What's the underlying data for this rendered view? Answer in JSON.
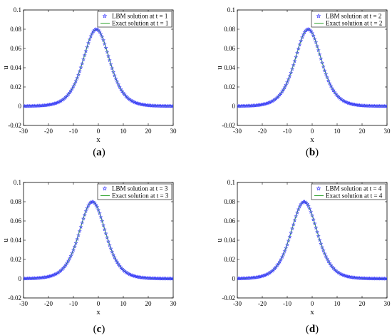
{
  "colors": {
    "lbm_marker": "#3b3bff",
    "exact_line": "#1f9e1f",
    "axis": "#000000"
  },
  "chart_data": [
    {
      "type": "scatter",
      "caption": "a",
      "xlabel": "x",
      "ylabel": "u",
      "xlim": [
        -30,
        30
      ],
      "ylim": [
        -0.02,
        0.1
      ],
      "xticks": [
        "-30",
        "-20",
        "-10",
        "0",
        "10",
        "20",
        "30"
      ],
      "yticks": [
        "-0.02",
        "0",
        "0.02",
        "0.04",
        "0.06",
        "0.08",
        "0.1"
      ],
      "grid": false,
      "legend_position": "top-right",
      "peak": 0.08,
      "center": -0.8,
      "width": 7.07,
      "series": [
        {
          "name": "LBM solution at t = 1",
          "marker": "star"
        },
        {
          "name": "Exact solution at t = 1",
          "marker": "line"
        }
      ]
    },
    {
      "type": "scatter",
      "caption": "b",
      "xlabel": "x",
      "ylabel": "u",
      "xlim": [
        -30,
        30
      ],
      "ylim": [
        -0.02,
        0.1
      ],
      "xticks": [
        "-30",
        "-20",
        "-10",
        "0",
        "10",
        "20",
        "30"
      ],
      "yticks": [
        "-0.02",
        "0",
        "0.02",
        "0.04",
        "0.06",
        "0.08",
        "0.1"
      ],
      "grid": false,
      "legend_position": "top-right",
      "peak": 0.08,
      "center": -1.6,
      "width": 7.07,
      "series": [
        {
          "name": "LBM solution at t = 2",
          "marker": "star"
        },
        {
          "name": "Exact solution at t = 2",
          "marker": "line"
        }
      ]
    },
    {
      "type": "scatter",
      "caption": "c",
      "xlabel": "x",
      "ylabel": "u",
      "xlim": [
        -30,
        30
      ],
      "ylim": [
        -0.02,
        0.1
      ],
      "xticks": [
        "-30",
        "-20",
        "-10",
        "0",
        "10",
        "20",
        "30"
      ],
      "yticks": [
        "-0.02",
        "0",
        "0.02",
        "0.04",
        "0.06",
        "0.08",
        "0.1"
      ],
      "grid": false,
      "legend_position": "top-right",
      "peak": 0.08,
      "center": -2.4,
      "width": 7.07,
      "series": [
        {
          "name": "LBM solution at t = 3",
          "marker": "star"
        },
        {
          "name": "Exact solution at t = 3",
          "marker": "line"
        }
      ]
    },
    {
      "type": "scatter",
      "caption": "d",
      "xlabel": "x",
      "ylabel": "u",
      "xlim": [
        -30,
        30
      ],
      "ylim": [
        -0.02,
        0.1
      ],
      "xticks": [
        "-30",
        "-20",
        "-10",
        "0",
        "10",
        "20",
        "30"
      ],
      "yticks": [
        "-0.02",
        "0",
        "0.02",
        "0.04",
        "0.06",
        "0.08",
        "0.1"
      ],
      "grid": false,
      "legend_position": "top-right",
      "peak": 0.08,
      "center": -3.2,
      "width": 7.07,
      "series": [
        {
          "name": "LBM solution at t = 4",
          "marker": "star"
        },
        {
          "name": "Exact solution at t = 4",
          "marker": "line"
        }
      ]
    }
  ]
}
